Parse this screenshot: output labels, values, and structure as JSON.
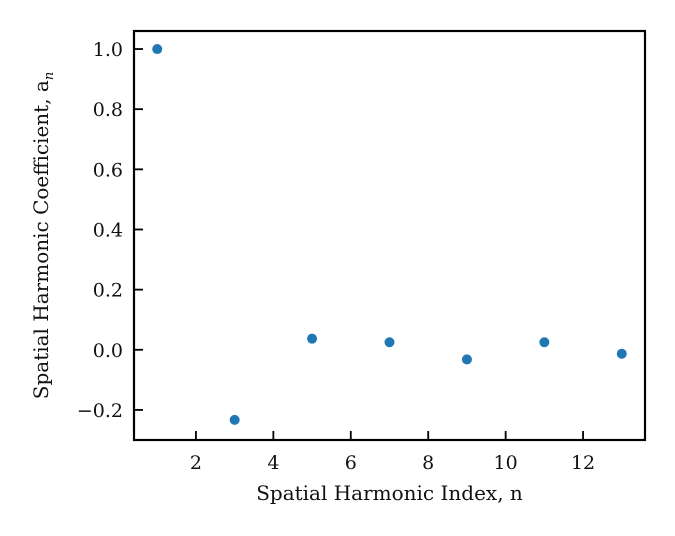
{
  "chart_data": {
    "type": "scatter",
    "title": "",
    "xlabel": "Spatial Harmonic Index, n",
    "ylabel": "Spatial Harmonic Coefficient, a",
    "ylabel_subscript": "n",
    "xlim": [
      0.4,
      13.6
    ],
    "ylim": [
      -0.3,
      1.06
    ],
    "xticks": [
      2,
      4,
      6,
      8,
      10,
      12
    ],
    "yticks": [
      -0.2,
      0.0,
      0.2,
      0.4,
      0.6,
      0.8,
      1.0
    ],
    "xtick_labels": [
      "2",
      "4",
      "6",
      "8",
      "10",
      "12"
    ],
    "ytick_labels": [
      "−0.2",
      "0.0",
      "0.2",
      "0.4",
      "0.6",
      "0.8",
      "1.0"
    ],
    "grid": false,
    "legend": "none",
    "color": "#1f77b4",
    "x": [
      1,
      3,
      5,
      7,
      9,
      11,
      13
    ],
    "y": [
      1.0,
      -0.233,
      0.037,
      0.025,
      -0.032,
      0.025,
      -0.013
    ]
  }
}
